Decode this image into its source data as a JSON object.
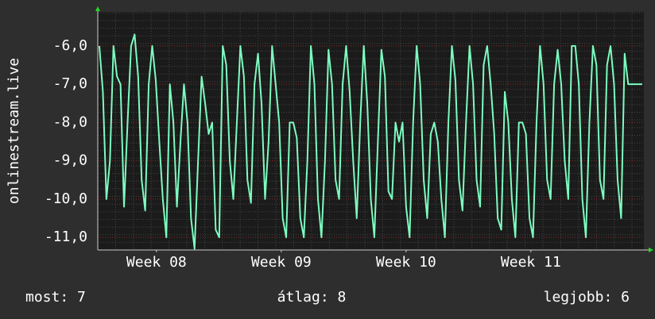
{
  "chart_data": {
    "type": "line",
    "y_label": "onlinestream.live",
    "color": "#7dfcc0",
    "grid": true,
    "ylim": [
      -11.33,
      -5.11
    ],
    "yticks": [
      {
        "value": -6,
        "label": "-6,0"
      },
      {
        "value": -7,
        "label": "-7,0"
      },
      {
        "value": -8,
        "label": "-8,0"
      },
      {
        "value": -9,
        "label": "-9,0"
      },
      {
        "value": -10,
        "label": "-10,0"
      },
      {
        "value": -11,
        "label": "-11,0"
      }
    ],
    "xlim": [
      0,
      154
    ],
    "xticks": [
      {
        "value": 16.2,
        "label": "Week 08"
      },
      {
        "value": 51.6,
        "label": "Week 09"
      },
      {
        "value": 87,
        "label": "Week 10"
      },
      {
        "value": 122.4,
        "label": "Week 11"
      }
    ],
    "values": [
      -6.0,
      -7.2,
      -10.0,
      -9.0,
      -6.0,
      -6.8,
      -7.0,
      -10.2,
      -8.0,
      -6.0,
      -5.7,
      -6.8,
      -9.5,
      -10.3,
      -7.0,
      -6.0,
      -6.9,
      -8.5,
      -10.0,
      -11.0,
      -7.0,
      -8.0,
      -10.2,
      -8.5,
      -7.0,
      -8.0,
      -10.5,
      -11.3,
      -9.0,
      -6.8,
      -7.5,
      -8.3,
      -8.0,
      -10.8,
      -11.0,
      -6.0,
      -6.5,
      -9.0,
      -10.0,
      -8.0,
      -6.0,
      -6.8,
      -9.5,
      -10.1,
      -7.0,
      -6.2,
      -7.5,
      -10.0,
      -8.5,
      -6.0,
      -7.0,
      -8.0,
      -10.5,
      -11.0,
      -8.0,
      -8.0,
      -8.4,
      -10.5,
      -11.0,
      -9.0,
      -6.0,
      -7.0,
      -10.0,
      -11.0,
      -9.0,
      -6.1,
      -7.0,
      -9.5,
      -10.0,
      -7.0,
      -6.0,
      -7.2,
      -9.0,
      -10.5,
      -8.0,
      -6.0,
      -7.5,
      -10.0,
      -11.0,
      -8.5,
      -6.1,
      -6.8,
      -9.8,
      -10.0,
      -8.0,
      -8.5,
      -8.0,
      -10.2,
      -11.0,
      -8.0,
      -6.0,
      -7.0,
      -9.5,
      -10.5,
      -8.3,
      -8.0,
      -8.5,
      -10.0,
      -11.0,
      -8.0,
      -6.0,
      -6.9,
      -9.5,
      -10.3,
      -8.0,
      -6.0,
      -7.0,
      -9.5,
      -10.2,
      -6.5,
      -6.0,
      -7.0,
      -8.3,
      -10.5,
      -10.8,
      -7.2,
      -8.0,
      -10.0,
      -11.0,
      -8.0,
      -8.0,
      -8.3,
      -10.5,
      -11.0,
      -8.0,
      -6.0,
      -7.0,
      -9.5,
      -10.0,
      -7.0,
      -6.1,
      -7.0,
      -9.0,
      -10.0,
      -6.0,
      -6.0,
      -7.0,
      -10.0,
      -11.0,
      -8.0,
      -6.0,
      -6.5,
      -9.5,
      -10.0,
      -6.5,
      -6.0,
      -7.0,
      -9.5,
      -10.5,
      -6.2,
      -7.0,
      -7.0,
      -7.0,
      -7.0,
      -7.0
    ]
  },
  "footer": {
    "current": "most: 7",
    "average": "átlag: 8",
    "best": "legjobb: 6"
  }
}
